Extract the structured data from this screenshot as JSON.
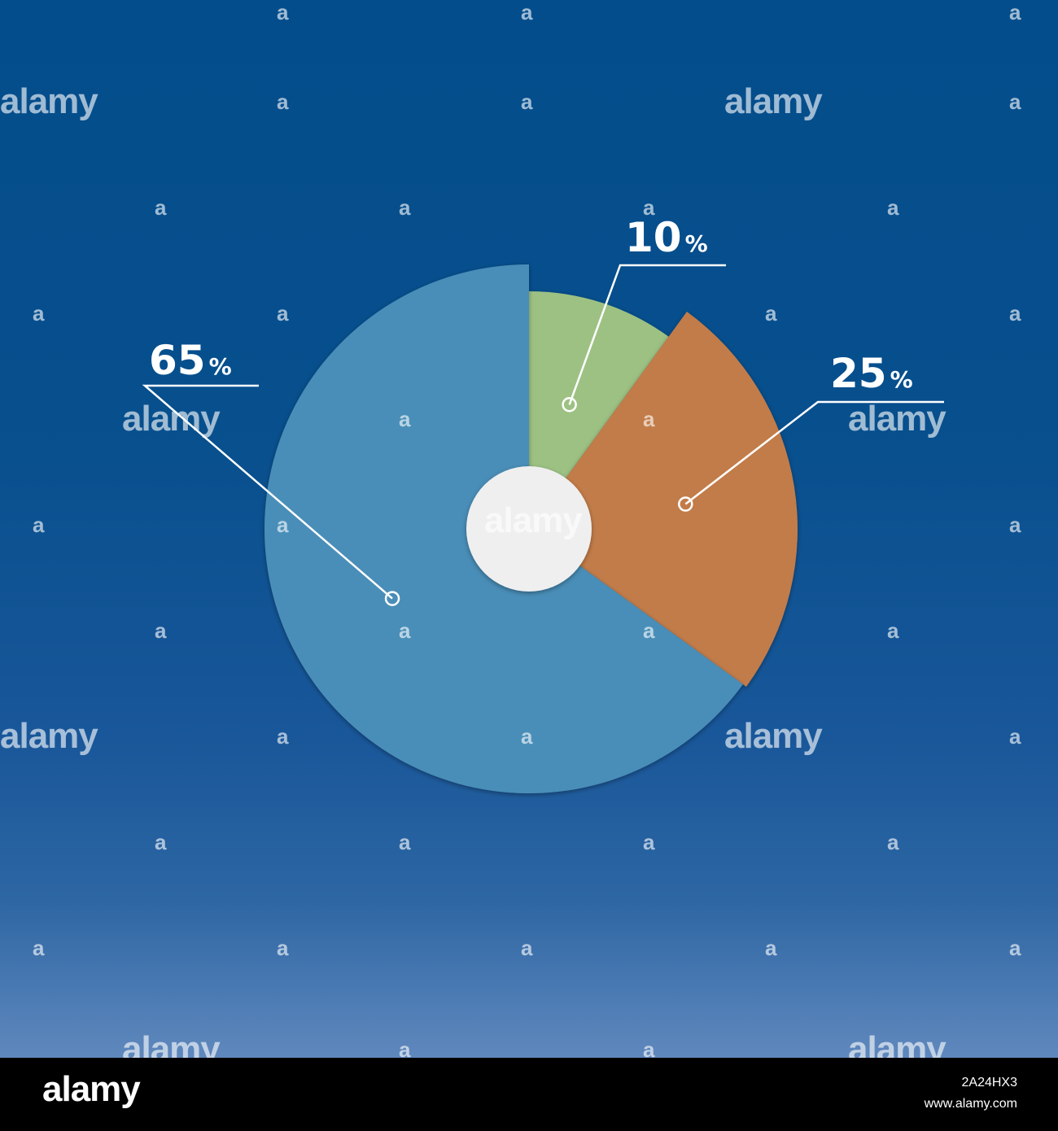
{
  "chart_data": {
    "type": "pie",
    "slices": [
      {
        "value": 10,
        "label": "10",
        "unit": "%",
        "color": "#9dc183"
      },
      {
        "value": 25,
        "label": "25",
        "unit": "%",
        "color": "#c27b48"
      },
      {
        "value": 65,
        "label": "65",
        "unit": "%",
        "color": "#4a8eb8"
      }
    ],
    "center_color": "#efefef",
    "background_top": "#044d8c",
    "background_bottom": "#5f88bd"
  },
  "watermark": {
    "brand": "alamy",
    "mark": "a"
  },
  "footer": {
    "logo": "alamy",
    "image_id": "2A24HX3",
    "site": "www.alamy.com"
  }
}
